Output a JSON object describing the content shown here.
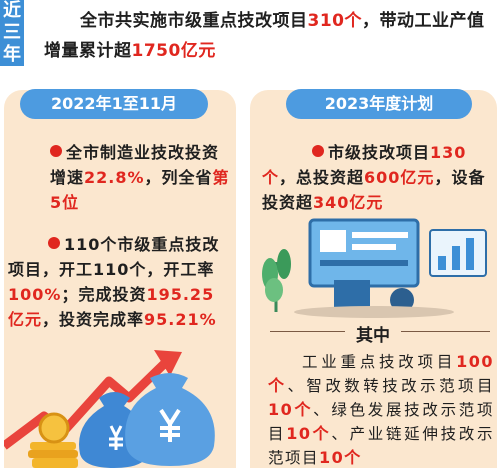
{
  "tag": {
    "chars": [
      "近",
      "三",
      "年"
    ]
  },
  "intro": {
    "p1": "全市共实施市级重点技改项目",
    "v1": "310个",
    "p2": "，带动工业产值增量累计超",
    "v2": "1750亿元"
  },
  "left": {
    "header": "2022年1至11月",
    "item1": {
      "t1": "全市制造业技改投资增速",
      "v1": "22.8%",
      "t2": "，列全省",
      "v2": "第5位"
    },
    "item2": {
      "t1": "110个市级重点技改项目，开工110个，开工率",
      "v1": "100%",
      "t2": "；完成投资",
      "v2": "195.25亿元",
      "t3": "，投资完成率",
      "v3": "95.21%"
    }
  },
  "right": {
    "header": "2023年度计划",
    "item1": {
      "t1": "市级技改项目",
      "v1": "130个",
      "t2": "，总投资超",
      "v2": "600亿元",
      "t3": "，设备投资超",
      "v3": "340亿元"
    },
    "divider": "其中",
    "sub": {
      "t1": "工业重点技改项目",
      "v1": "100个",
      "t2": "、智改数转技改示范项目",
      "v2": "10个",
      "t3": "、绿色发展技改示范项目",
      "v3": "10个",
      "t4": "、产业链延伸技改示范项目",
      "v4": "10个"
    }
  },
  "colors": {
    "accent_blue": "#4d9be0",
    "highlight_red": "#e0271f",
    "panel_bg": "#fbe7cf"
  },
  "icons": [
    "yen-money-bag-icon",
    "coin-stack-icon",
    "rising-arrow-icon",
    "dashboard-screen-icon",
    "bar-chart-icon",
    "plant-icon"
  ]
}
